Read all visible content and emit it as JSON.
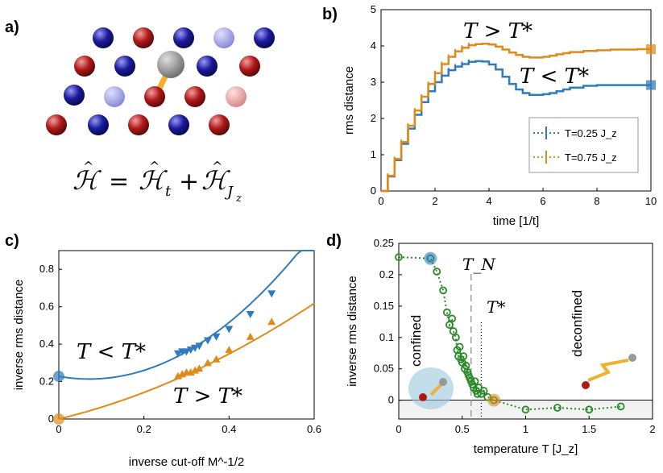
{
  "figure": {
    "panel_labels": [
      "a)",
      "b)",
      "c)",
      "d)"
    ],
    "panel_a": {
      "hamiltonian": "Ĥ = Ĥ_t + Ĥ_{J_z}",
      "ham_parts": {
        "H": "ℋ",
        "eq": "=",
        "plus": "+",
        "sub_t": "t",
        "sub_J": "J",
        "sub_z": "z"
      },
      "colors": {
        "blue": "#1a1a9e",
        "red": "#b01818",
        "light_blue": "#9a9ae8",
        "light_red": "#e8a0a0",
        "hole": "#8c8c8c",
        "string": "#f0b030"
      }
    },
    "panel_c_labels": {
      "low": "T < T*",
      "high": "T > T*"
    },
    "panel_d_labels": {
      "TN": "T_N",
      "Tstar": "T*",
      "confined": "confined",
      "deconfined": "deconfined"
    }
  },
  "chart_data": [
    {
      "id": "b",
      "type": "line",
      "xlabel": "time [1/t]",
      "ylabel": "rms distance",
      "xlim": [
        0,
        10
      ],
      "ylim": [
        0,
        5
      ],
      "xticks": [
        "0",
        "2",
        "4",
        "6",
        "8",
        "10"
      ],
      "yticks": [
        "0",
        "1",
        "2",
        "3",
        "4",
        "5"
      ],
      "annotations": [
        "T > T*",
        "T < T*"
      ],
      "legend": {
        "placement": "lower-right",
        "entries": [
          "T=0.25 J_z",
          "T=0.75 J_z"
        ]
      },
      "series": [
        {
          "name": "T=0.25 J_z",
          "color": "#2f7bbf",
          "x": [
            0,
            0.25,
            0.5,
            0.75,
            1,
            1.25,
            1.5,
            1.75,
            2,
            2.25,
            2.5,
            2.75,
            3,
            3.25,
            3.5,
            3.75,
            4,
            4.25,
            4.5,
            4.75,
            5,
            5.25,
            5.5,
            5.75,
            6,
            6.25,
            6.5,
            6.75,
            7,
            7.5,
            8,
            8.5,
            9,
            9.5,
            10
          ],
          "y": [
            0,
            0.4,
            0.85,
            1.3,
            1.72,
            2.1,
            2.45,
            2.75,
            3.0,
            3.18,
            3.33,
            3.43,
            3.5,
            3.56,
            3.58,
            3.57,
            3.49,
            3.35,
            3.15,
            2.95,
            2.8,
            2.7,
            2.65,
            2.65,
            2.67,
            2.7,
            2.75,
            2.8,
            2.85,
            2.9,
            2.92,
            2.92,
            2.92,
            2.92,
            2.92
          ]
        },
        {
          "name": "T=0.75 J_z",
          "color": "#e08a1a",
          "x": [
            0,
            0.25,
            0.5,
            0.75,
            1,
            1.25,
            1.5,
            1.75,
            2,
            2.25,
            2.5,
            2.75,
            3,
            3.25,
            3.5,
            3.75,
            4,
            4.25,
            4.5,
            4.75,
            5,
            5.25,
            5.5,
            5.75,
            6,
            6.25,
            6.5,
            6.75,
            7,
            7.5,
            8,
            8.5,
            9,
            9.5,
            10
          ],
          "y": [
            0,
            0.42,
            0.88,
            1.35,
            1.8,
            2.22,
            2.6,
            2.95,
            3.25,
            3.5,
            3.7,
            3.85,
            3.95,
            4.02,
            4.05,
            4.06,
            4.04,
            3.98,
            3.9,
            3.82,
            3.75,
            3.7,
            3.68,
            3.68,
            3.7,
            3.73,
            3.77,
            3.8,
            3.83,
            3.86,
            3.88,
            3.9,
            3.9,
            3.91,
            3.91
          ]
        }
      ],
      "end_markers": [
        {
          "series": "T=0.25 J_z",
          "x": 10,
          "y": 2.92
        },
        {
          "series": "T=0.75 J_z",
          "x": 10,
          "y": 3.91
        }
      ]
    },
    {
      "id": "c",
      "type": "scatter",
      "xlabel": "inverse cut-off M^-1/2",
      "ylabel": "inverse rms distance",
      "xlim": [
        0,
        0.6
      ],
      "ylim": [
        0,
        0.9
      ],
      "xticks": [
        "0",
        "0.2",
        "0.4",
        "0.6"
      ],
      "yticks": [
        "0",
        "0.2",
        "0.4",
        "0.6",
        "0.8"
      ],
      "annotations": [
        "T < T*",
        "T > T*"
      ],
      "series": [
        {
          "name": "T < T*",
          "color": "#2f7bbf",
          "marker": "triangle-down",
          "points": [
            [
              0.28,
              0.35
            ],
            [
              0.29,
              0.36
            ],
            [
              0.3,
              0.36
            ],
            [
              0.31,
              0.37
            ],
            [
              0.32,
              0.38
            ],
            [
              0.33,
              0.39
            ],
            [
              0.35,
              0.42
            ],
            [
              0.37,
              0.44
            ],
            [
              0.4,
              0.48
            ],
            [
              0.45,
              0.56
            ],
            [
              0.5,
              0.67
            ]
          ],
          "fit_coeffs": [
            0.228,
            -0.4,
            2.8
          ],
          "extrapolated": {
            "x": 0,
            "y": 0.228
          }
        },
        {
          "name": "T > T*",
          "color": "#e08a1a",
          "marker": "triangle-up",
          "points": [
            [
              0.28,
              0.23
            ],
            [
              0.29,
              0.24
            ],
            [
              0.3,
              0.25
            ],
            [
              0.31,
              0.25
            ],
            [
              0.32,
              0.26
            ],
            [
              0.33,
              0.27
            ],
            [
              0.35,
              0.3
            ],
            [
              0.37,
              0.32
            ],
            [
              0.4,
              0.37
            ],
            [
              0.45,
              0.44
            ],
            [
              0.5,
              0.52
            ]
          ],
          "fit_coeffs": [
            0.0,
            0.55,
            0.8
          ],
          "extrapolated": {
            "x": 0,
            "y": 0.0
          }
        }
      ]
    },
    {
      "id": "d",
      "type": "scatter",
      "xlabel": "temperature T [J_z]",
      "ylabel": "inverse rms distance",
      "xlim": [
        0,
        2
      ],
      "ylim": [
        -0.03,
        0.25
      ],
      "xticks": [
        "0",
        "0.5",
        "1",
        "1.5",
        "2"
      ],
      "yticks": [
        "0",
        "0.05",
        "0.1",
        "0.15",
        "0.2",
        "0.25"
      ],
      "vlines": [
        {
          "name": "T_N",
          "x": 0.57,
          "style": "dashed"
        },
        {
          "name": "T*",
          "x": 0.65,
          "style": "dotted"
        }
      ],
      "series": [
        {
          "name": "data",
          "color": "#2a8a2a",
          "marker": "open-circle",
          "x": [
            0,
            0.25,
            0.3,
            0.35,
            0.38,
            0.4,
            0.42,
            0.43,
            0.45,
            0.46,
            0.47,
            0.48,
            0.49,
            0.5,
            0.51,
            0.52,
            0.53,
            0.54,
            0.55,
            0.56,
            0.57,
            0.58,
            0.59,
            0.6,
            0.61,
            0.62,
            0.63,
            0.65,
            0.67,
            0.7,
            0.75,
            1.0,
            1.25,
            1.5,
            1.75
          ],
          "y": [
            0.228,
            0.226,
            0.205,
            0.175,
            0.14,
            0.12,
            0.13,
            0.11,
            0.1,
            0.08,
            0.07,
            0.085,
            0.065,
            0.06,
            0.07,
            0.05,
            0.055,
            0.045,
            0.04,
            0.035,
            0.03,
            0.025,
            0.02,
            0.03,
            0.015,
            0.01,
            0.02,
            0.01,
            0.015,
            0.005,
            0.0,
            -0.015,
            -0.012,
            -0.015,
            -0.01
          ]
        }
      ],
      "highlight": [
        {
          "x": 0.25,
          "y": 0.226,
          "color": "#2f7bbf"
        },
        {
          "x": 0.75,
          "y": 0.0,
          "color": "#e08a1a"
        }
      ]
    }
  ]
}
